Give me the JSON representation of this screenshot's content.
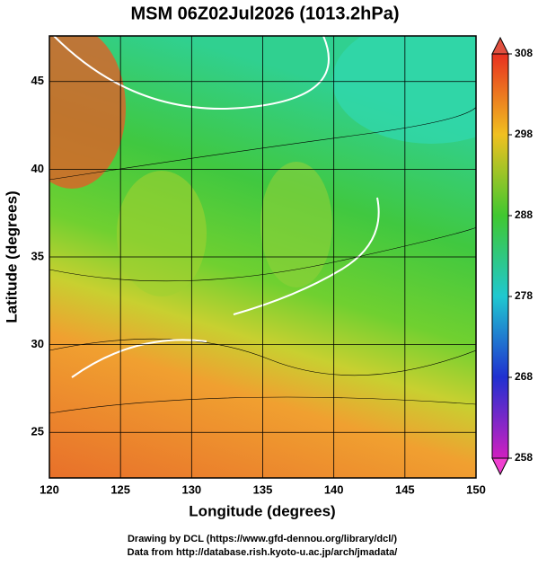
{
  "title": "MSM 06Z02Jul2026 (1013.2hPa)",
  "x_axis": {
    "label": "Longitude (degrees)",
    "lim": [
      120,
      150
    ],
    "ticks": [
      120,
      125,
      130,
      135,
      140,
      145,
      150
    ]
  },
  "y_axis": {
    "label": "Latitude  (degrees)",
    "lim": [
      22.4,
      47.6
    ],
    "ticks": [
      25,
      30,
      35,
      40,
      45
    ]
  },
  "colorbar": {
    "lim": [
      258,
      308
    ],
    "ticks": [
      258,
      268,
      278,
      288,
      298,
      308
    ]
  },
  "footer": [
    "Drawing by DCL (https://www.gfd-dennou.org/library/dcl/)",
    "Data from http://database.rish.kyoto-u.ac.jp/arch/jmadata/"
  ]
}
